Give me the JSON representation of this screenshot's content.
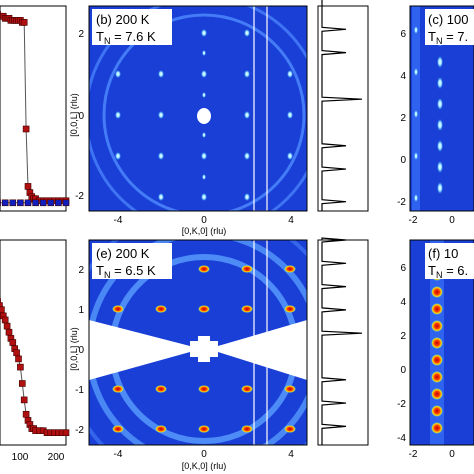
{
  "colors": {
    "map_background": "#1a3fd6",
    "ring": "#5aa0ff",
    "spot_hot": "#d01010",
    "spot_warm": "#ffe000",
    "spot_cool": "#30e0ff",
    "marker_red": "#b01010",
    "marker_blue": "#1020c0"
  },
  "panels": {
    "b": {
      "label_line1": "(b) 200 K",
      "label_line2": "T",
      "label_sub": "N",
      "label_line2_rest": " = 7.6 K"
    },
    "c": {
      "label_line1": "(c) 100",
      "label_line2": "T",
      "label_sub": "N",
      "label_line2_rest": " = 7."
    },
    "e": {
      "label_line1": "(e) 200 K",
      "label_line2": "T",
      "label_sub": "N",
      "label_line2_rest": " = 6.5 K"
    },
    "f": {
      "label_line1": "(f) 10",
      "label_line2": "T",
      "label_sub": "N",
      "label_line2_rest": " = 6."
    }
  },
  "axes": {
    "xlabel": "[0,K,0] (rlu)",
    "ylabel": "[0,0,L] (rlu)",
    "map_x_ticks": [
      "-4",
      "0",
      "4"
    ],
    "map_y_ticks_top": [
      "2",
      "0",
      "-2"
    ],
    "map_y_ticks_bottom": [
      "2",
      "1",
      "0",
      "-1",
      "-2"
    ],
    "right_y_ticks_top": [
      "6",
      "4",
      "2",
      "0",
      "-2"
    ],
    "right_y_ticks_bottom": [
      "6",
      "4",
      "2",
      "0",
      "-2",
      "-4"
    ],
    "right_x_ticks": [
      "-2",
      "0"
    ],
    "left_x_ticks": [
      "100",
      "200"
    ]
  },
  "chart_data": [
    {
      "type": "scatter",
      "panel": "a (partial)",
      "series": [
        {
          "color": "red",
          "x": [
            5,
            10,
            15,
            20,
            25,
            30,
            35,
            40,
            45,
            50,
            55,
            60,
            65,
            70,
            75,
            80,
            85,
            90,
            95,
            100,
            105,
            110,
            115,
            120,
            130,
            140,
            150,
            160,
            170,
            180,
            190,
            200
          ],
          "y": [
            0.92,
            0.95,
            0.96,
            0.96,
            0.95,
            0.95,
            0.95,
            0.94,
            0.94,
            0.94,
            0.93,
            0.93,
            0.93,
            0.93,
            0.93,
            0.93,
            0.92,
            0.92,
            0.4,
            0.12,
            0.09,
            0.07,
            0.06,
            0.06,
            0.05,
            0.05,
            0.05,
            0.05,
            0.05,
            0.05,
            0.05,
            0.05
          ]
        },
        {
          "color": "blue",
          "x": [
            5,
            20,
            40,
            60,
            80,
            100,
            120,
            140,
            160,
            180,
            200
          ],
          "y": [
            0.04,
            0.04,
            0.04,
            0.04,
            0.04,
            0.04,
            0.04,
            0.04,
            0.04,
            0.04,
            0.04
          ]
        }
      ]
    },
    {
      "type": "scatter",
      "panel": "d (partial)",
      "series": [
        {
          "color": "red",
          "x": [
            5,
            10,
            15,
            20,
            25,
            30,
            35,
            40,
            45,
            50,
            55,
            60,
            65,
            70,
            75,
            80,
            85,
            90,
            95,
            100,
            105,
            110,
            115,
            120,
            130,
            140,
            150,
            160,
            170,
            180,
            190,
            200
          ],
          "y": [
            0.78,
            0.76,
            0.72,
            0.7,
            0.68,
            0.66,
            0.63,
            0.61,
            0.58,
            0.55,
            0.52,
            0.5,
            0.47,
            0.45,
            0.42,
            0.38,
            0.3,
            0.22,
            0.15,
            0.12,
            0.1,
            0.08,
            0.08,
            0.07,
            0.07,
            0.07,
            0.06,
            0.06,
            0.06,
            0.06,
            0.06,
            0.06
          ]
        }
      ]
    },
    {
      "type": "line",
      "panel": "b line cut",
      "x": [
        2.2,
        1.5,
        1.0,
        0.0,
        -1.0,
        -1.5,
        -2.2
      ],
      "y_peaks": [
        1,
        1,
        1,
        1,
        1,
        1,
        1
      ]
    },
    {
      "type": "line",
      "panel": "e line cut",
      "x": [
        2.0,
        1.5,
        1.0,
        0.5,
        0.0,
        -1.0,
        -1.5,
        -2.0
      ],
      "y_peaks": [
        1,
        1,
        1,
        1,
        1,
        1,
        1,
        1
      ]
    }
  ]
}
